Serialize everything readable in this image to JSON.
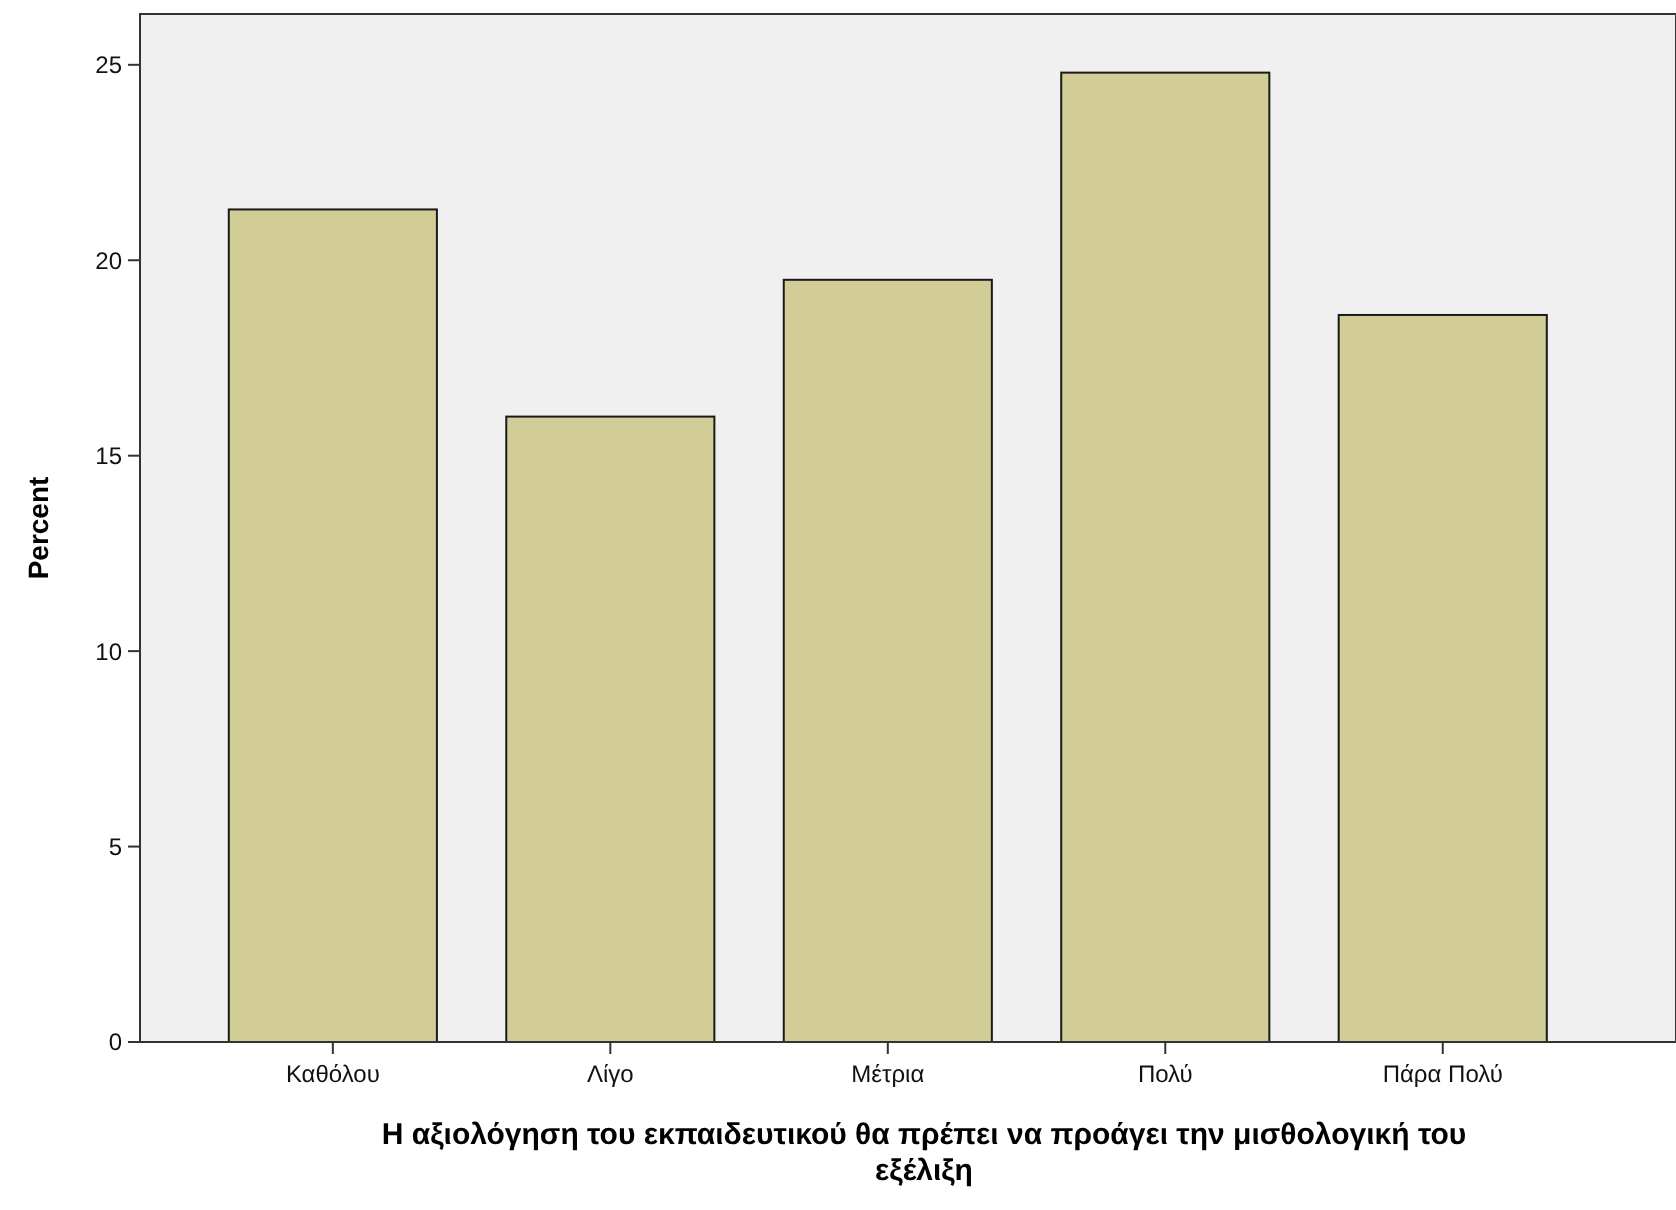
{
  "chart_data": {
    "type": "bar",
    "xlabel": "Η αξιολόγηση του εκπαιδευτικού θα πρέπει να προάγει την μισθολογική του εξέλιξη",
    "ylabel": "Percent",
    "categories": [
      "Καθόλου",
      "Λίγο",
      "Μέτρια",
      "Πολύ",
      "Πάρα Πολύ"
    ],
    "values": [
      21.3,
      16.0,
      19.5,
      24.8,
      18.6
    ],
    "color": "#d2cc96",
    "ylim": [
      0,
      26.3
    ],
    "yticks": [
      0,
      5,
      10,
      15,
      20,
      25
    ],
    "grid": false
  }
}
